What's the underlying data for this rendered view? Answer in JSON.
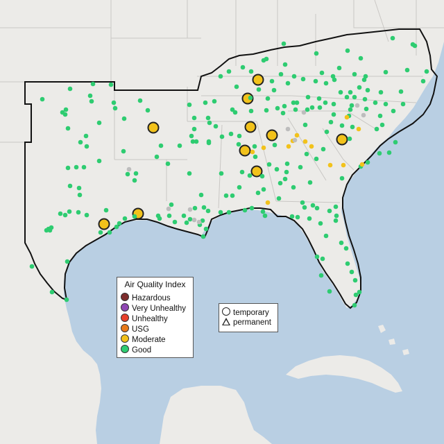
{
  "legend_aqi": {
    "title": "Air Quality Index",
    "items": [
      {
        "label": "Hazardous",
        "color": "#7e2d2d"
      },
      {
        "label": "Very Unhealthy",
        "color": "#8f47b3"
      },
      {
        "label": "Unhealthy",
        "color": "#e8402a"
      },
      {
        "label": "USG",
        "color": "#e87a1a"
      },
      {
        "label": "Moderate",
        "color": "#f2c21b"
      },
      {
        "label": "Good",
        "color": "#2ecc71"
      }
    ]
  },
  "legend_monitor_type": {
    "items": [
      {
        "label": "temporary",
        "icon": "circle-icon"
      },
      {
        "label": "permanent",
        "icon": "triangle-icon"
      }
    ]
  },
  "colors": {
    "land": "#ecebe8",
    "water": "#b9cfe3",
    "state_border": "#c9c7c4",
    "highlight_border": "#111111",
    "no_data": "#bdbdbd"
  }
}
